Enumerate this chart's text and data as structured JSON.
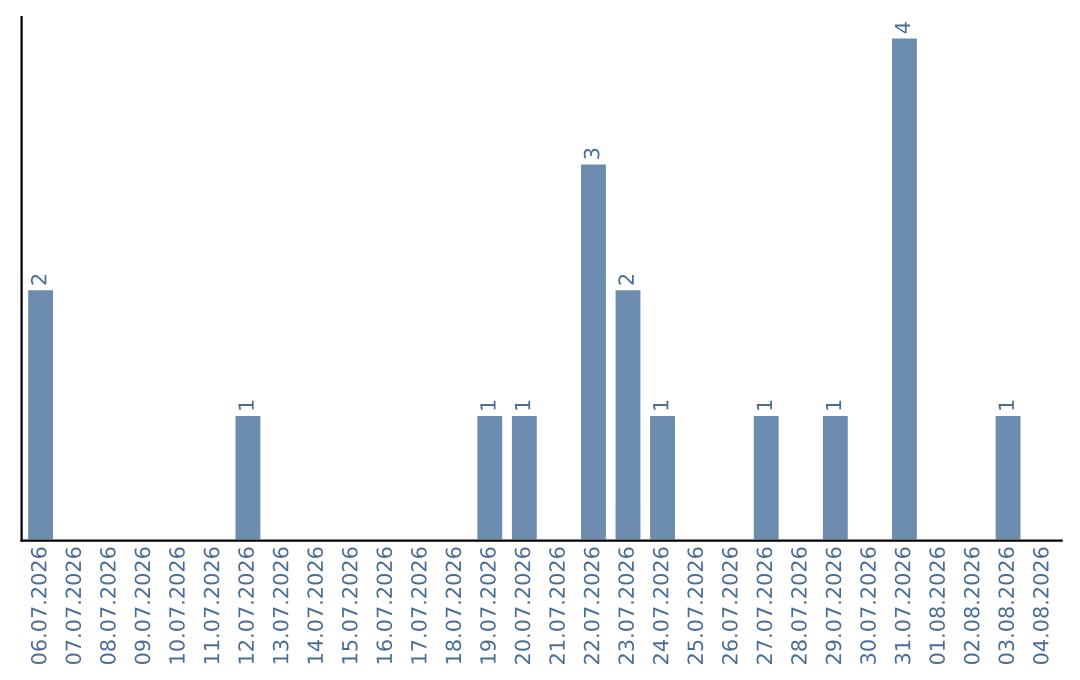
{
  "chart_data": {
    "type": "bar",
    "categories": [
      "06.07.2026",
      "07.07.2026",
      "08.07.2026",
      "09.07.2026",
      "10.07.2026",
      "11.07.2026",
      "12.07.2026",
      "13.07.2026",
      "14.07.2026",
      "15.07.2026",
      "16.07.2026",
      "17.07.2026",
      "18.07.2026",
      "19.07.2026",
      "20.07.2026",
      "21.07.2026",
      "22.07.2026",
      "23.07.2026",
      "24.07.2026",
      "25.07.2026",
      "26.07.2026",
      "27.07.2026",
      "28.07.2026",
      "29.07.2026",
      "30.07.2026",
      "31.07.2026",
      "01.08.2026",
      "02.08.2026",
      "03.08.2026",
      "04.08.2026"
    ],
    "values": [
      2,
      null,
      null,
      null,
      null,
      null,
      1,
      null,
      null,
      null,
      null,
      null,
      null,
      1,
      1,
      null,
      3,
      2,
      1,
      null,
      null,
      1,
      null,
      1,
      null,
      4,
      null,
      null,
      1,
      null
    ],
    "value_labels": [
      "2",
      null,
      null,
      null,
      null,
      null,
      "1",
      null,
      null,
      null,
      null,
      null,
      null,
      "1",
      "1",
      null,
      "3",
      "2",
      "1",
      null,
      null,
      "1",
      null,
      "1",
      null,
      "4",
      null,
      null,
      "1",
      null
    ],
    "color": "#6b8cae",
    "grid": false,
    "legend": false
  }
}
